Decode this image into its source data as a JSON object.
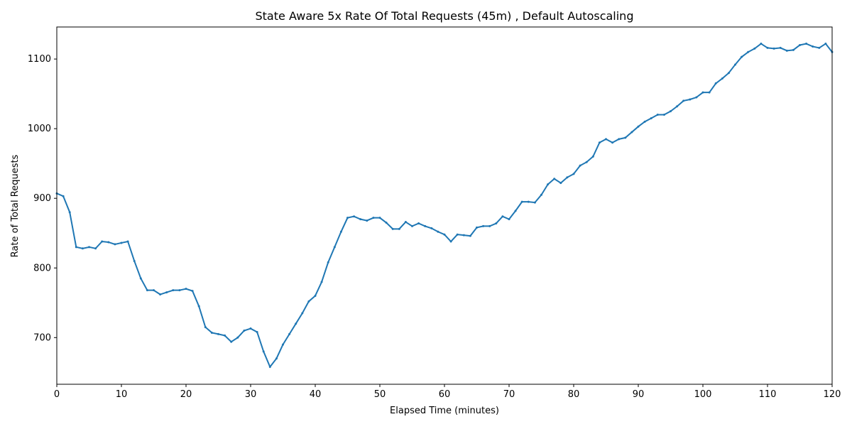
{
  "chart_data": {
    "type": "line",
    "title": "State Aware 5x Rate Of Total Requests (45m) , Default Autoscaling",
    "x_label": "Elapsed Time (minutes)",
    "y_label": "Rate of Total Requests",
    "x": [
      0,
      1,
      2,
      3,
      4,
      5,
      6,
      7,
      8,
      9,
      10,
      11,
      12,
      13,
      14,
      15,
      16,
      17,
      18,
      19,
      20,
      21,
      22,
      23,
      24,
      25,
      26,
      27,
      28,
      29,
      30,
      31,
      32,
      33,
      34,
      35,
      36,
      37,
      38,
      39,
      40,
      41,
      42,
      43,
      44,
      45,
      46,
      47,
      48,
      49,
      50,
      51,
      52,
      53,
      54,
      55,
      56,
      57,
      58,
      59,
      60,
      61,
      62,
      63,
      64,
      65,
      66,
      67,
      68,
      69,
      70,
      71,
      72,
      73,
      74,
      75,
      76,
      77,
      78,
      79,
      80,
      81,
      82,
      83,
      84,
      85,
      86,
      87,
      88,
      89,
      90,
      91,
      92,
      93,
      94,
      95,
      96,
      97,
      98,
      99,
      100,
      101,
      102,
      103,
      104,
      105,
      106,
      107,
      108,
      109,
      110,
      111,
      112,
      113,
      114,
      115,
      116,
      117,
      118,
      119,
      120
    ],
    "series": [
      {
        "color": "#1f77b4",
        "values": [
          907,
          903,
          880,
          830,
          828,
          830,
          828,
          838,
          837,
          834,
          836,
          838,
          810,
          785,
          768,
          768,
          762,
          765,
          768,
          768,
          770,
          767,
          745,
          715,
          707,
          705,
          703,
          694,
          700,
          710,
          713,
          708,
          680,
          658,
          670,
          690,
          705,
          720,
          735,
          752,
          760,
          780,
          808,
          830,
          852,
          872,
          874,
          870,
          868,
          872,
          872,
          865,
          856,
          856,
          866,
          860,
          864,
          860,
          857,
          852,
          848,
          838,
          848,
          847,
          846,
          858,
          860,
          860,
          864,
          874,
          870,
          882,
          895,
          895,
          894,
          905,
          920,
          928,
          922,
          930,
          935,
          947,
          952,
          960,
          980,
          985,
          980,
          985,
          987,
          995,
          1003,
          1010,
          1015,
          1020,
          1020,
          1025,
          1032,
          1040,
          1042,
          1045,
          1052,
          1052,
          1065,
          1072,
          1080,
          1092,
          1103,
          1110,
          1115,
          1122,
          1116,
          1115,
          1116,
          1112,
          1113,
          1120,
          1122,
          1118,
          1116,
          1122,
          1110
        ]
      }
    ],
    "xlim": [
      0,
      120
    ],
    "xticks": [
      0,
      10,
      20,
      30,
      40,
      50,
      60,
      70,
      80,
      90,
      100,
      110,
      120
    ],
    "ylim": [
      633,
      1146
    ],
    "yticks": [
      700,
      800,
      900,
      1000,
      1100
    ]
  }
}
